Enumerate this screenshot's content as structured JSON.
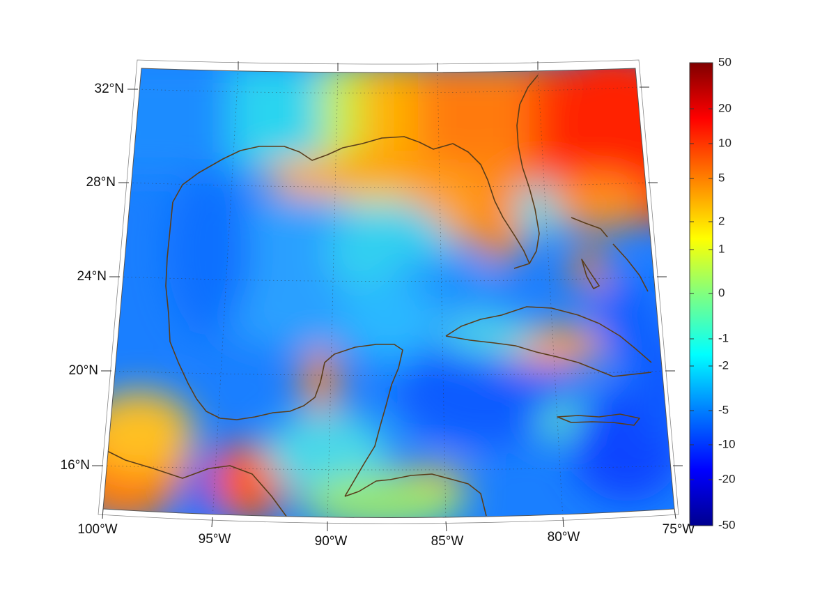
{
  "map": {
    "lat_labels": [
      "32°N",
      "28°N",
      "24°N",
      "20°N",
      "16°N"
    ],
    "lon_labels": [
      "100°W",
      "95°W",
      "90°W",
      "85°W",
      "80°W",
      "75°W"
    ],
    "colorbar": {
      "tick_labels": [
        "50",
        "20",
        "10",
        "5",
        "2",
        "1",
        "0",
        "-1",
        "-2",
        "-5",
        "-10",
        "-20",
        "-50"
      ],
      "colors": [
        "#00008f",
        "#0000ff",
        "#0080ff",
        "#00ffff",
        "#80ff80",
        "#ffff00",
        "#ff8000",
        "#ff0000",
        "#800000"
      ]
    },
    "coastline_color": "#5a3d1a"
  }
}
